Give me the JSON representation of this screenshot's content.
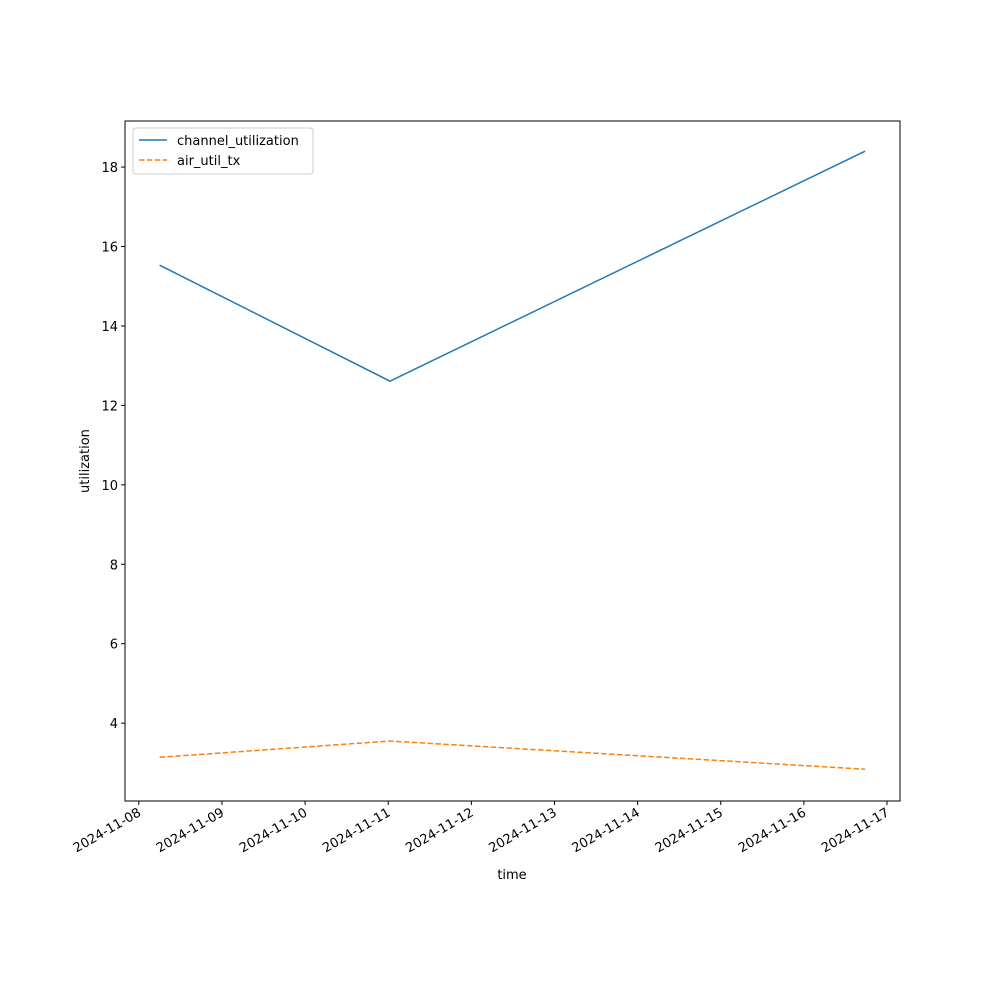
{
  "chart_data": {
    "type": "line",
    "xlabel": "time",
    "ylabel": "utilization",
    "x": [
      "2024-11-08T06:00",
      "2024-11-11T00:30",
      "2024-11-16T17:40"
    ],
    "series": [
      {
        "name": "channel_utilization",
        "color": "#1f77b4",
        "linestyle": "solid",
        "values": [
          15.53,
          12.61,
          18.4
        ]
      },
      {
        "name": "air_util_tx",
        "color": "#ff7f0e",
        "linestyle": "dashed",
        "values": [
          3.14,
          3.55,
          2.84
        ]
      }
    ],
    "xlim": [
      "2024-11-07T20:00",
      "2024-11-17T03:45"
    ],
    "xticks": [
      "2024-11-08",
      "2024-11-09",
      "2024-11-10",
      "2024-11-11",
      "2024-11-12",
      "2024-11-13",
      "2024-11-14",
      "2024-11-15",
      "2024-11-16",
      "2024-11-17"
    ],
    "ylim": [
      2.04,
      19.16
    ],
    "yticks": [
      4,
      6,
      8,
      10,
      12,
      14,
      16,
      18
    ],
    "grid": false,
    "legend": "upper-left"
  }
}
